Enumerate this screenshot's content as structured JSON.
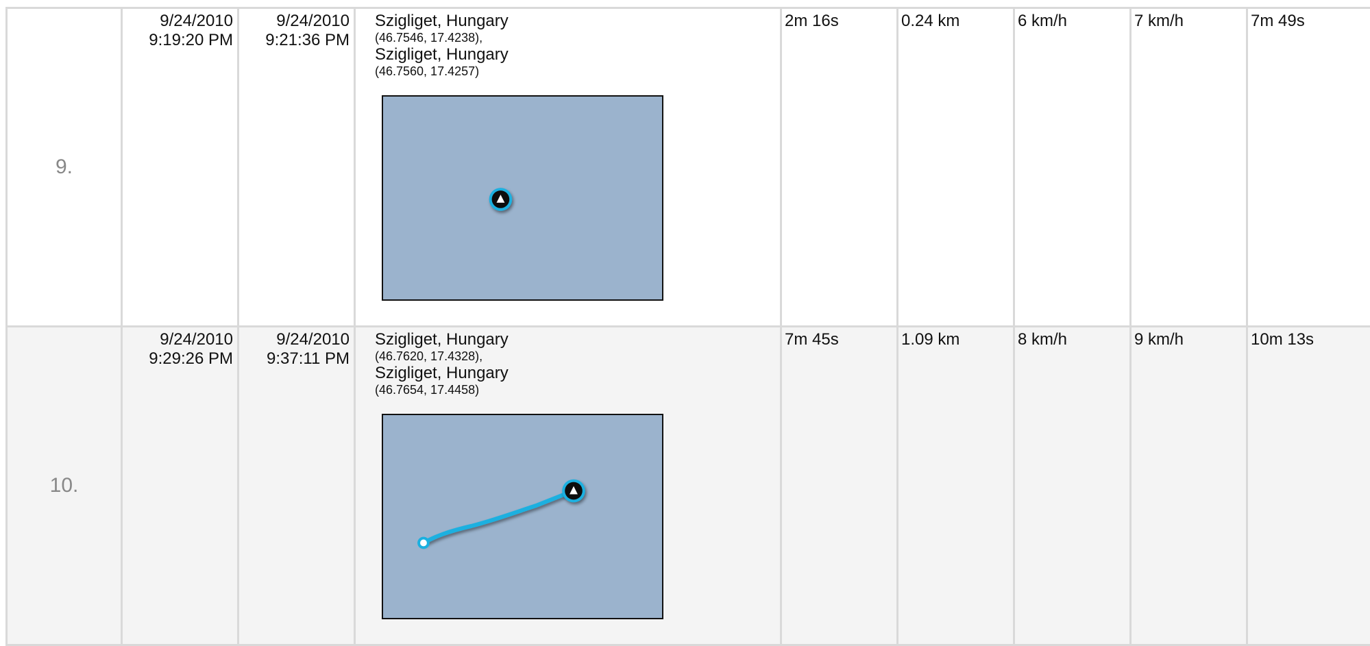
{
  "trips": [
    {
      "index": "9.",
      "start_date": "9/24/2010",
      "start_time": "9:19:20 PM",
      "end_date": "9/24/2010",
      "end_time": "9:21:36 PM",
      "from_name": "Szigliget, Hungary",
      "from_coord": "(46.7546, 17.4238),",
      "to_name": "Szigliget, Hungary",
      "to_coord": "(46.7560, 17.4257)",
      "duration": "2m 16s",
      "distance": "0.24 km",
      "avg_speed": "6 km/h",
      "max_speed": "7 km/h",
      "idle": "7m 49s",
      "map": {
        "route_color": "#1ab0e0",
        "background": "#9bb3cd",
        "marker_icon": "boat-marker-icon"
      }
    },
    {
      "index": "10.",
      "start_date": "9/24/2010",
      "start_time": "9:29:26 PM",
      "end_date": "9/24/2010",
      "end_time": "9:37:11 PM",
      "from_name": "Szigliget, Hungary",
      "from_coord": "(46.7620, 17.4328),",
      "to_name": "Szigliget, Hungary",
      "to_coord": "(46.7654, 17.4458)",
      "duration": "7m 45s",
      "distance": "1.09 km",
      "avg_speed": "8 km/h",
      "max_speed": "9 km/h",
      "idle": "10m 13s",
      "map": {
        "route_color": "#1ab0e0",
        "background": "#9bb3cd",
        "marker_icon": "boat-marker-icon"
      }
    }
  ]
}
